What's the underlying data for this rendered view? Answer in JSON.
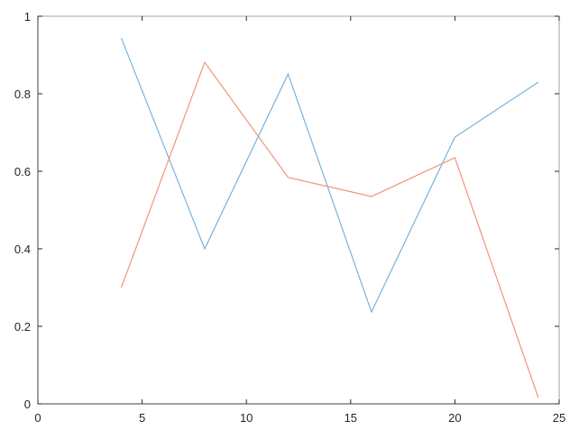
{
  "chart_data": {
    "type": "line",
    "title": "",
    "xlabel": "",
    "ylabel": "",
    "xlim": [
      0,
      25
    ],
    "ylim": [
      0,
      1
    ],
    "xticks": [
      "0",
      "5",
      "10",
      "15",
      "20",
      "25"
    ],
    "yticks": [
      "0",
      "0.2",
      "0.4",
      "0.6",
      "0.8",
      "1"
    ],
    "grid": false,
    "x": [
      4,
      8,
      12,
      16,
      20,
      24
    ],
    "series": [
      {
        "color": "#0072BD",
        "values": [
          0.944,
          0.4,
          0.851,
          0.237,
          0.688,
          0.83
        ]
      },
      {
        "color": "#D95319",
        "values": [
          0.3,
          0.881,
          0.584,
          0.535,
          0.635,
          0.016
        ]
      }
    ]
  }
}
